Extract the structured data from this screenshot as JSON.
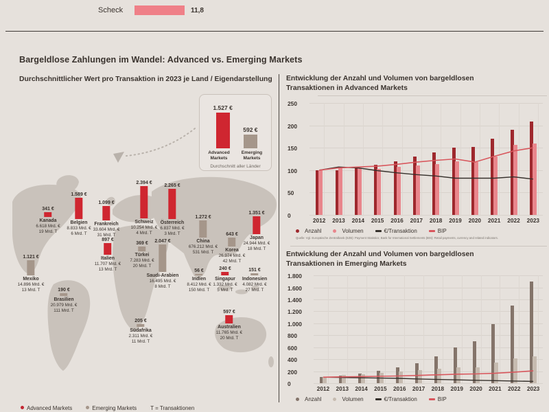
{
  "colors": {
    "background": "#e6e1dc",
    "accent_red": "#cf2630",
    "salmon_bar": "#ef8088",
    "advanced_dark_bar": "#9e282d",
    "advanced_light_bar": "#e9868c",
    "emerging_dark_bar": "#84746a",
    "emerging_light_bar": "#c6bbb0",
    "bip_line": "#d8575d",
    "transaction_line": "#35302b",
    "emerging_gray": "#a5968a"
  },
  "top_fragment": {
    "label": "Scheck",
    "value_label": "11,8"
  },
  "page_title": "Bargeldlose Zahlungen im Wandel: Advanced vs. Emerging Markets",
  "map_panel": {
    "title": "Durchschnittlicher Wert pro Transaktion in 2023 je Land / Eigendarstellung",
    "inset": {
      "advanced_value": "1.527 €",
      "advanced_label": "Advanced Markets",
      "emerging_value": "592 €",
      "emerging_label": "Emerging Markets",
      "caption": "Durchschnitt aller Länder"
    },
    "legend": {
      "advanced": "Advanced Markets",
      "emerging": "Emerging Markets",
      "transactions_note": "T = Transaktionen"
    }
  },
  "advanced_chart": {
    "title_line1": "Entwicklung der Anzahl und Volumen von bargeldlosen",
    "title_line2": "Transaktionen in Advanced Markets",
    "source": "Quelle: Vgl. Europäische Zentralbank (EZB): Payment Statistics; Bank for International Settlements (BIS): Retail payments, currency and related indicators."
  },
  "emerging_chart": {
    "title_line1": "Entwicklung der Anzahl und Volumen von bargeldlosen",
    "title_line2": "Transaktionen in Emerging Markets"
  },
  "chart_data": [
    {
      "type": "bar",
      "title": "Scheck (oberer Bildausschnitt)",
      "categories": [
        "Scheck"
      ],
      "values": [
        11.8
      ]
    },
    {
      "type": "bar",
      "title": "Durchschnittlicher Wert pro Transaktion in 2023 je Land / Eigendarstellung",
      "unit": "€ pro Transaktion",
      "points": [
        {
          "name": "Kanada",
          "value_label": "341 €",
          "eur_per_transaction": 341,
          "volume": "6.618 Mrd. €",
          "transactions": "19 Mrd. T",
          "market": "advanced"
        },
        {
          "name": "Belgien",
          "value_label": "1.589 €",
          "eur_per_transaction": 1589,
          "volume": "8.833 Mrd. €",
          "transactions": "6 Mrd. T",
          "market": "advanced"
        },
        {
          "name": "Frankreich",
          "value_label": "1.099 €",
          "eur_per_transaction": 1099,
          "volume": "33.604 Mrd. €",
          "transactions": "31 Mrd. T",
          "market": "advanced"
        },
        {
          "name": "Schweiz",
          "value_label": "2.394 €",
          "eur_per_transaction": 2394,
          "volume": "10.254 Mrd. €",
          "transactions": "4 Mrd. T",
          "market": "advanced"
        },
        {
          "name": "Österreich",
          "value_label": "2.265 €",
          "eur_per_transaction": 2265,
          "volume": "6.837 Mrd. €",
          "transactions": "3 Mrd. T",
          "market": "advanced"
        },
        {
          "name": "Italien",
          "value_label": "897 €",
          "eur_per_transaction": 897,
          "volume": "11.707 Mrd. €",
          "transactions": "13 Mrd. T",
          "market": "advanced"
        },
        {
          "name": "Türkei",
          "value_label": "369 €",
          "eur_per_transaction": 369,
          "volume": "7.283 Mrd. €",
          "transactions": "20 Mrd. T",
          "market": "emerging"
        },
        {
          "name": "Saudi-Arabien",
          "value_label": "2.047 €",
          "eur_per_transaction": 2047,
          "volume": "16.495 Mrd. €",
          "transactions": "8 Mrd. T",
          "market": "emerging"
        },
        {
          "name": "China",
          "value_label": "1.272 €",
          "eur_per_transaction": 1272,
          "volume": "676.212 Mrd. €",
          "transactions": "531 Mrd. T",
          "market": "emerging"
        },
        {
          "name": "Korea",
          "value_label": "643 €",
          "eur_per_transaction": 643,
          "volume": "26.974 Mrd. €",
          "transactions": "42 Mrd. T",
          "market": "emerging"
        },
        {
          "name": "Japan",
          "value_label": "1.351 €",
          "eur_per_transaction": 1351,
          "volume": "24.944 Mrd. €",
          "transactions": "18 Mrd. T",
          "market": "advanced"
        },
        {
          "name": "Mexiko",
          "value_label": "1.121 €",
          "eur_per_transaction": 1121,
          "volume": "14.896 Mrd. €",
          "transactions": "13 Mrd. T",
          "market": "emerging"
        },
        {
          "name": "Brasilien",
          "value_label": "190 €",
          "eur_per_transaction": 190,
          "volume": "20.979 Mrd. €",
          "transactions": "111 Mrd. T",
          "market": "emerging"
        },
        {
          "name": "Südafrika",
          "value_label": "205 €",
          "eur_per_transaction": 205,
          "volume": "2.311 Mrd. €",
          "transactions": "11 Mrd. T",
          "market": "emerging"
        },
        {
          "name": "Indien",
          "value_label": "56 €",
          "eur_per_transaction": 56,
          "volume": "8.412 Mrd. €",
          "transactions": "150 Mrd. T",
          "market": "emerging"
        },
        {
          "name": "Singapur",
          "value_label": "240 €",
          "eur_per_transaction": 240,
          "volume": "1.332 Mrd. €",
          "transactions": "5 Mrd. T",
          "market": "advanced"
        },
        {
          "name": "Indonesien",
          "value_label": "151 €",
          "eur_per_transaction": 151,
          "volume": "4.082 Mrd. €",
          "transactions": "27 Mrd. T",
          "market": "emerging"
        },
        {
          "name": "Australien",
          "value_label": "597 €",
          "eur_per_transaction": 597,
          "volume": "11.765 Mrd. €",
          "transactions": "20 Mrd. T",
          "market": "advanced"
        }
      ]
    },
    {
      "type": "bar+line",
      "title": "Entwicklung der Anzahl und Volumen von bargeldlosen Transaktionen in Advanced Markets",
      "x": [
        2012,
        2013,
        2014,
        2015,
        2016,
        2017,
        2018,
        2019,
        2020,
        2021,
        2022,
        2023
      ],
      "ylim": [
        0,
        250
      ],
      "ytick_step": 50,
      "series": [
        {
          "name": "Anzahl",
          "type": "bar",
          "values": [
            100,
            100,
            105,
            112,
            120,
            130,
            140,
            151,
            152,
            170,
            190,
            209
          ]
        },
        {
          "name": "Volumen",
          "type": "bar",
          "values": [
            100,
            105,
            105,
            103,
            107,
            111,
            114,
            119,
            118,
            131,
            156,
            159
          ]
        },
        {
          "name": "€/Transaktion",
          "type": "line",
          "values": [
            100,
            107,
            105,
            99,
            94,
            90,
            87,
            82,
            82,
            82,
            85,
            80
          ]
        },
        {
          "name": "BIP",
          "type": "line",
          "values": [
            100,
            105,
            107,
            109,
            113,
            118,
            122,
            125,
            118,
            131,
            143,
            150
          ]
        }
      ]
    },
    {
      "type": "bar+line",
      "title": "Entwicklung der Anzahl und Volumen von bargeldlosen Transaktionen in Emerging Markets",
      "x": [
        2012,
        2013,
        2014,
        2015,
        2016,
        2017,
        2018,
        2019,
        2020,
        2021,
        2022,
        2023
      ],
      "ylim": [
        0,
        1800
      ],
      "ytick_step": 200,
      "series": [
        {
          "name": "Anzahl",
          "type": "bar",
          "values": [
            100,
            125,
            165,
            210,
            265,
            335,
            450,
            600,
            700,
            990,
            1300,
            1700
          ]
        },
        {
          "name": "Volumen",
          "type": "bar",
          "values": [
            100,
            140,
            145,
            175,
            200,
            215,
            245,
            265,
            270,
            350,
            410,
            445
          ]
        },
        {
          "name": "€/Transaktion",
          "type": "line",
          "values": [
            100,
            95,
            90,
            85,
            80,
            70,
            62,
            55,
            48,
            42,
            35,
            30
          ]
        },
        {
          "name": "BIP",
          "type": "line",
          "values": [
            100,
            105,
            110,
            115,
            120,
            130,
            140,
            150,
            155,
            165,
            185,
            205
          ]
        }
      ]
    }
  ]
}
